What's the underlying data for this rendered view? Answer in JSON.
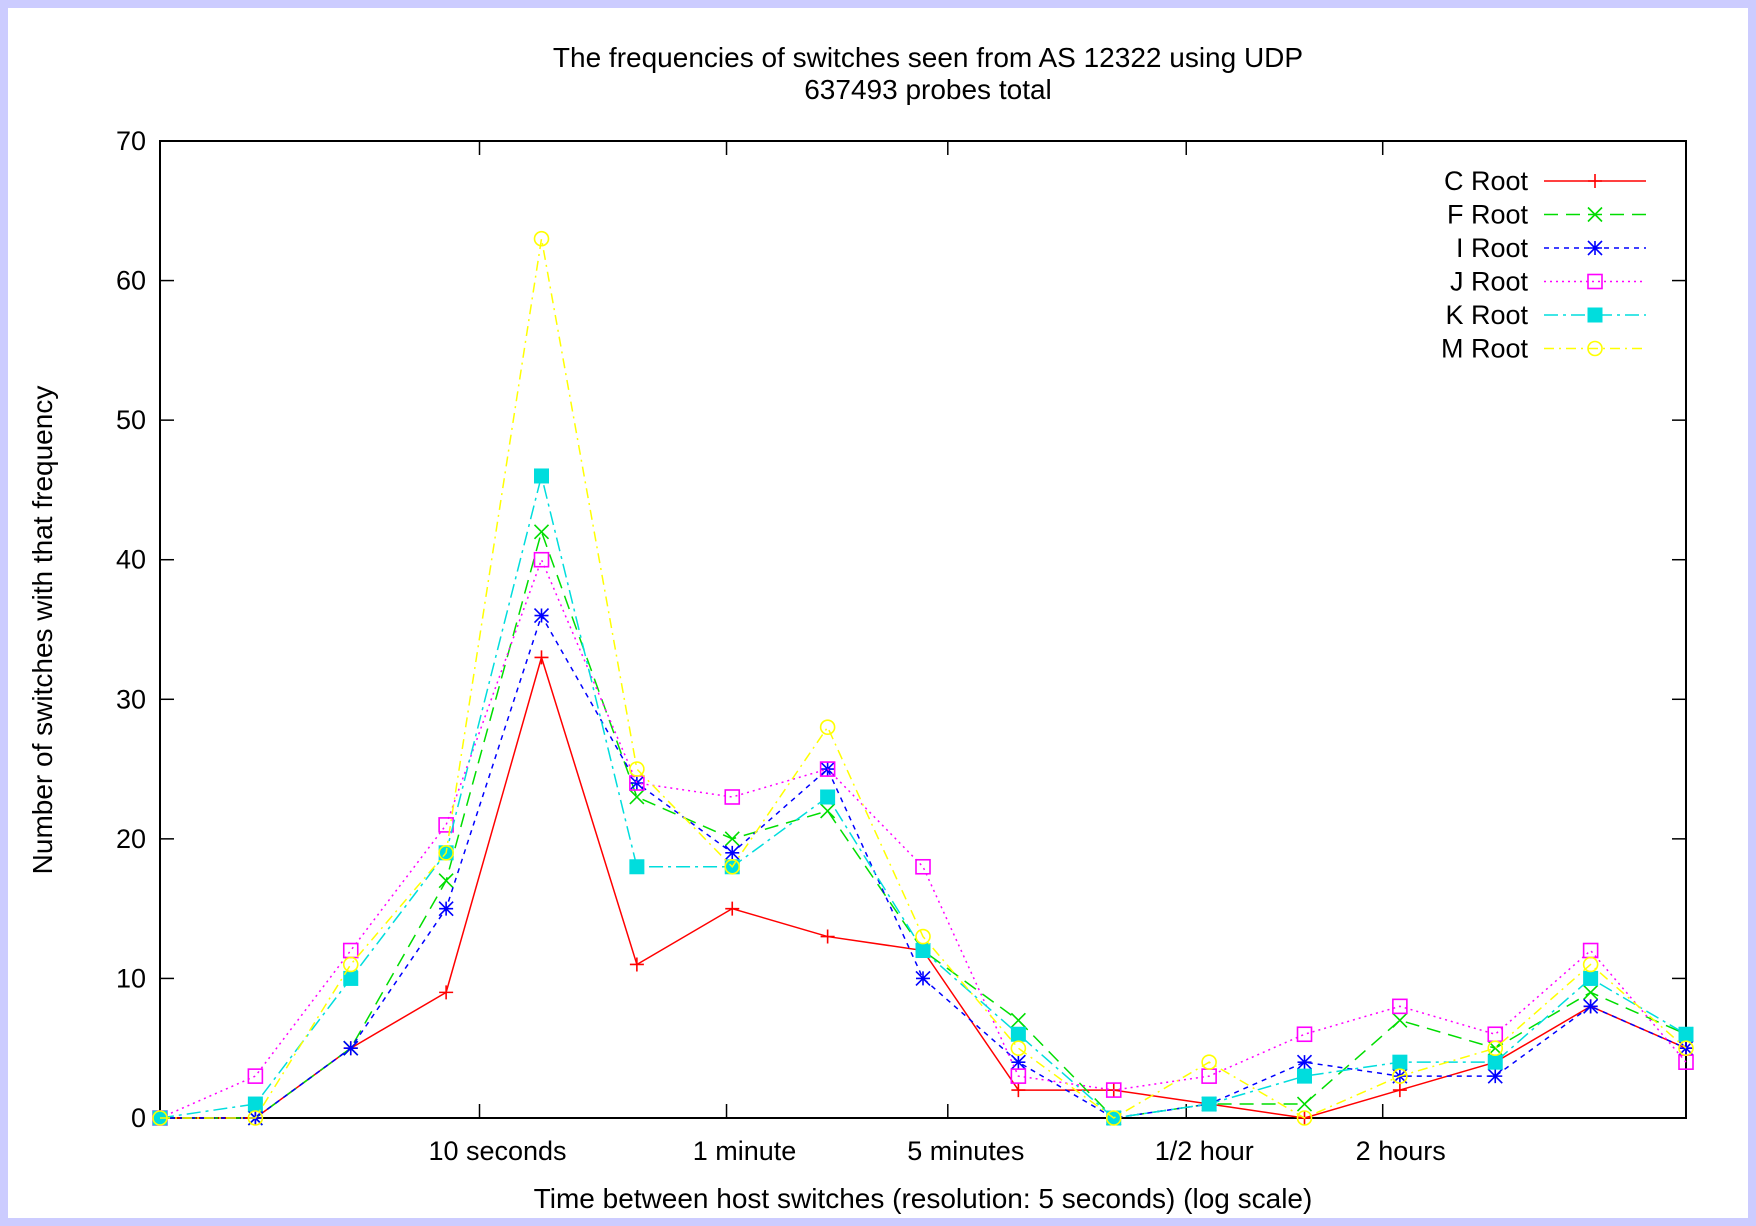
{
  "chart_data": {
    "type": "line",
    "title": "The frequencies of switches seen from AS 12322 using UDP",
    "subtitle": "637493 probes total",
    "xlabel": "Time between host switches (resolution: 5 seconds) (log scale)",
    "ylabel": "Number of switches with that frequency",
    "x_scale": "log",
    "ylim": [
      0,
      70
    ],
    "yticks": [
      0,
      10,
      20,
      30,
      40,
      50,
      60,
      70
    ],
    "xtick_labels": [
      "10 seconds",
      "1 minute",
      "5 minutes",
      "1/2 hour",
      "2 hours"
    ],
    "x_index_range": [
      0,
      16
    ],
    "xtick_positions": [
      3.35,
      5.94,
      8.26,
      10.76,
      12.82
    ],
    "legend_position": "top-right",
    "series": [
      {
        "name": "C Root",
        "color": "#ff0000",
        "dash": "",
        "marker": "plus",
        "values": [
          0,
          0,
          5,
          9,
          33,
          11,
          15,
          13,
          12,
          2,
          2,
          1,
          0,
          2,
          4,
          8,
          5
        ]
      },
      {
        "name": "F Root",
        "color": "#00dd00",
        "dash": "14,8",
        "marker": "cross",
        "values": [
          0,
          0,
          5,
          17,
          42,
          23,
          20,
          22,
          12,
          7,
          0,
          1,
          1,
          7,
          5,
          9,
          6
        ]
      },
      {
        "name": "I Root",
        "color": "#0000ff",
        "dash": "5,5",
        "marker": "star",
        "values": [
          0,
          0,
          5,
          15,
          36,
          24,
          19,
          25,
          10,
          4,
          0,
          1,
          4,
          3,
          3,
          8,
          5
        ]
      },
      {
        "name": "J Root",
        "color": "#ff00ff",
        "dash": "2,4",
        "marker": "square",
        "values": [
          0,
          3,
          12,
          21,
          40,
          24,
          23,
          25,
          18,
          3,
          2,
          3,
          6,
          8,
          6,
          12,
          4
        ]
      },
      {
        "name": "K Root",
        "color": "#00dddd",
        "dash": "14,5,3,5",
        "marker": "filled-square",
        "values": [
          0,
          1,
          10,
          19,
          46,
          18,
          18,
          23,
          12,
          6,
          0,
          1,
          3,
          4,
          4,
          10,
          6
        ]
      },
      {
        "name": "M Root",
        "color": "#ffff00",
        "dash": "10,5,2,5",
        "marker": "circle",
        "values": [
          0,
          0,
          11,
          19,
          63,
          25,
          18,
          28,
          13,
          5,
          0,
          4,
          0,
          3,
          5,
          11,
          5
        ]
      }
    ]
  }
}
